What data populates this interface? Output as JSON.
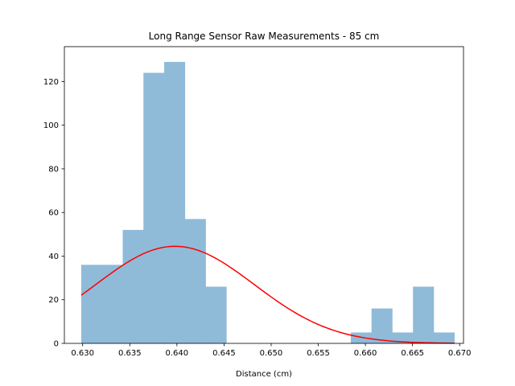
{
  "chart_data": {
    "type": "bar",
    "title": "Long Range Sensor Raw Measurements - 85 cm",
    "xlabel": "Distance (cm)",
    "ylabel": "",
    "xlim": [
      0.62806,
      0.67041
    ],
    "ylim": [
      0,
      136
    ],
    "x_ticks": [
      0.63,
      0.635,
      0.64,
      0.645,
      0.65,
      0.655,
      0.66,
      0.665,
      0.67
    ],
    "x_tick_labels": [
      "0.630",
      "0.635",
      "0.640",
      "0.645",
      "0.650",
      "0.655",
      "0.660",
      "0.665",
      "0.670"
    ],
    "y_ticks": [
      0,
      20,
      40,
      60,
      80,
      100,
      120
    ],
    "y_tick_labels": [
      "0",
      "20",
      "40",
      "60",
      "80",
      "100",
      "120"
    ],
    "grid": false,
    "histogram": {
      "color": "#8fbbd9",
      "bins": [
        {
          "x0": 0.62985,
          "x1": 0.63205,
          "count": 36
        },
        {
          "x0": 0.63205,
          "x1": 0.63425,
          "count": 36
        },
        {
          "x0": 0.63425,
          "x1": 0.63645,
          "count": 52
        },
        {
          "x0": 0.63645,
          "x1": 0.63865,
          "count": 124
        },
        {
          "x0": 0.63865,
          "x1": 0.64085,
          "count": 129
        },
        {
          "x0": 0.64085,
          "x1": 0.64305,
          "count": 57
        },
        {
          "x0": 0.64305,
          "x1": 0.64525,
          "count": 26
        },
        {
          "x0": 0.64525,
          "x1": 0.64745,
          "count": 0
        },
        {
          "x0": 0.64745,
          "x1": 0.64965,
          "count": 0
        },
        {
          "x0": 0.64965,
          "x1": 0.65185,
          "count": 0
        },
        {
          "x0": 0.65185,
          "x1": 0.65405,
          "count": 0
        },
        {
          "x0": 0.65405,
          "x1": 0.65625,
          "count": 0
        },
        {
          "x0": 0.65625,
          "x1": 0.65845,
          "count": 0
        },
        {
          "x0": 0.65845,
          "x1": 0.66065,
          "count": 5
        },
        {
          "x0": 0.66065,
          "x1": 0.66285,
          "count": 16
        },
        {
          "x0": 0.66285,
          "x1": 0.66505,
          "count": 5
        },
        {
          "x0": 0.66505,
          "x1": 0.66725,
          "count": 26
        },
        {
          "x0": 0.66725,
          "x1": 0.66945,
          "count": 5
        }
      ]
    },
    "fit_curve": {
      "type": "line",
      "color": "#ff0000",
      "x_start": 0.62985,
      "x_end": 0.66945,
      "mean": 0.6398,
      "sigma": 0.0084,
      "peak": 44.5
    }
  }
}
